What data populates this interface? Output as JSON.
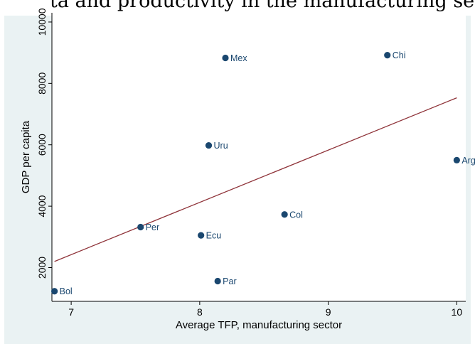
{
  "header_fragment": "ta and productivity in the manufacturing sector (Fig",
  "chart_data": {
    "type": "scatter",
    "title": "",
    "xlabel": "Average TFP, manufacturing sector",
    "ylabel": "GDP per capita",
    "xlim": [
      6.85,
      10.07
    ],
    "ylim": [
      900,
      10300
    ],
    "xticks": [
      7,
      8,
      9,
      10
    ],
    "yticks": [
      2000,
      4000,
      6000,
      8000,
      10000
    ],
    "grid": false,
    "points": [
      {
        "label": "Bol",
        "x": 6.87,
        "y": 1230
      },
      {
        "label": "Per",
        "x": 7.54,
        "y": 3320
      },
      {
        "label": "Ecu",
        "x": 8.01,
        "y": 3050
      },
      {
        "label": "Uru",
        "x": 8.07,
        "y": 5980
      },
      {
        "label": "Par",
        "x": 8.14,
        "y": 1560
      },
      {
        "label": "Mex",
        "x": 8.2,
        "y": 8830
      },
      {
        "label": "Col",
        "x": 8.66,
        "y": 3730
      },
      {
        "label": "Chi",
        "x": 9.46,
        "y": 8920
      },
      {
        "label": "Arg",
        "x": 10.0,
        "y": 5500
      }
    ],
    "fit_line": {
      "x": [
        6.87,
        10.0
      ],
      "y": [
        2200,
        7530
      ]
    },
    "colors": {
      "background": "#eaf2f3",
      "plot_area": "#ffffff",
      "marker": "#1a476f",
      "fit_line": "#90353b",
      "axis": "#000000"
    }
  }
}
